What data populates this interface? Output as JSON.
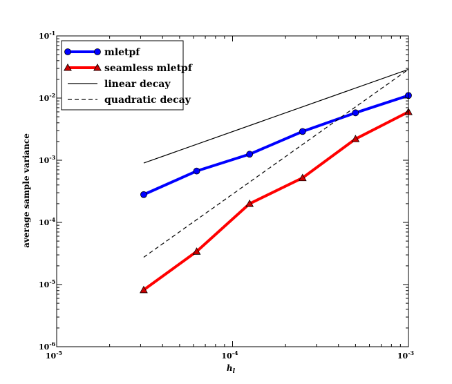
{
  "chart_data": {
    "type": "line",
    "title": "",
    "xlabel": "h_l",
    "ylabel": "average sample variance",
    "xscale": "log",
    "yscale": "log",
    "xlim": [
      1e-05,
      0.001
    ],
    "ylim": [
      1e-06,
      0.1
    ],
    "x_ticks": [
      {
        "value": 1e-05,
        "base": "10",
        "exp": "-5"
      },
      {
        "value": 0.0001,
        "base": "10",
        "exp": "-4"
      },
      {
        "value": 0.001,
        "base": "10",
        "exp": "-3"
      }
    ],
    "y_ticks": [
      {
        "value": 1e-06,
        "base": "10",
        "exp": "-6"
      },
      {
        "value": 1e-05,
        "base": "10",
        "exp": "-5"
      },
      {
        "value": 0.0001,
        "base": "10",
        "exp": "-4"
      },
      {
        "value": 0.001,
        "base": "10",
        "exp": "-3"
      },
      {
        "value": 0.01,
        "base": "10",
        "exp": "-2"
      },
      {
        "value": 0.1,
        "base": "10",
        "exp": "-1"
      }
    ],
    "grid": false,
    "legend_position": "top-left",
    "series": [
      {
        "name": "mletpf",
        "color": "#0000ff",
        "marker": "circle",
        "line": "solid",
        "x": [
          3.125e-05,
          6.25e-05,
          0.000125,
          0.00025,
          0.0005,
          0.001
        ],
        "y": [
          0.00028,
          0.00067,
          0.00125,
          0.0029,
          0.0058,
          0.011
        ]
      },
      {
        "name": "seamless mletpf",
        "color": "#ff0000",
        "marker": "triangle",
        "line": "solid",
        "x": [
          3.125e-05,
          6.25e-05,
          0.000125,
          0.00025,
          0.0005,
          0.001
        ],
        "y": [
          8.2e-06,
          3.4e-05,
          0.0002,
          0.00052,
          0.0022,
          0.006
        ]
      },
      {
        "name": "linear decay",
        "color": "#000000",
        "marker": "none",
        "line": "solid",
        "x": [
          3.125e-05,
          0.001
        ],
        "y": [
          0.0009,
          0.029
        ]
      },
      {
        "name": "quadratic decay",
        "color": "#000000",
        "marker": "none",
        "line": "dashed",
        "x": [
          3.125e-05,
          0.001
        ],
        "y": [
          2.75e-05,
          0.029
        ]
      }
    ]
  }
}
